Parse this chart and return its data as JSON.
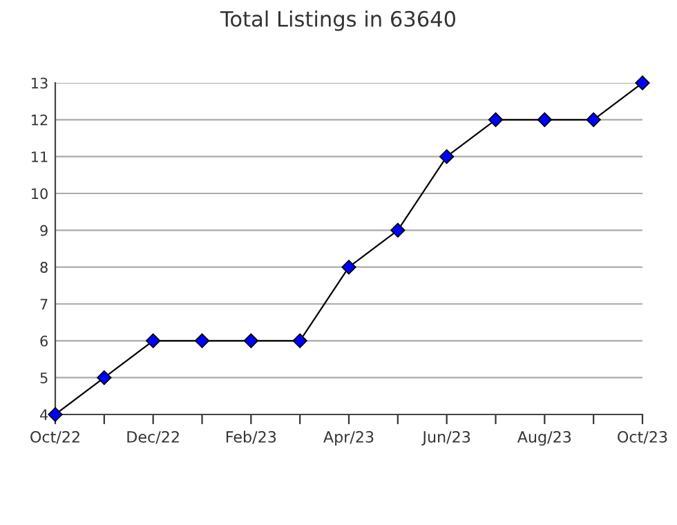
{
  "chart_data": {
    "type": "line",
    "title": "Total Listings in 63640",
    "categories": [
      "Oct/22",
      null,
      "Dec/22",
      null,
      "Feb/23",
      null,
      "Apr/23",
      null,
      "Jun/23",
      null,
      "Aug/23",
      null,
      "Oct/23"
    ],
    "series": [
      {
        "color": "#0000ff",
        "values": [
          4,
          5,
          6,
          6,
          6,
          6,
          8,
          9,
          11,
          12,
          12,
          12,
          13
        ]
      }
    ],
    "ylim": [
      4,
      13
    ],
    "yticks": [
      4,
      5,
      6,
      7,
      8,
      9,
      10,
      11,
      12,
      13
    ],
    "grid": "y",
    "marker": "diamond",
    "line_style": "solid"
  }
}
